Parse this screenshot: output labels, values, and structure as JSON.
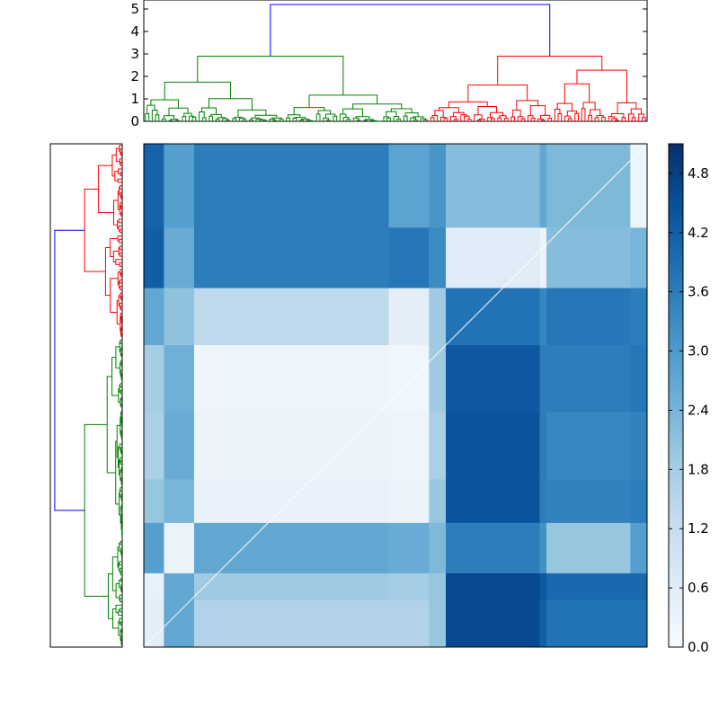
{
  "chart_data": [
    {
      "type": "dendrogram",
      "orientation": "top",
      "ylim": [
        0,
        5.4
      ],
      "yticks": [
        "0",
        "1",
        "2",
        "3",
        "4",
        "5"
      ],
      "leaf_count": 150,
      "merge_heights": {
        "root": 5.2,
        "green_cluster_top": 2.9,
        "red_cluster_top": 2.9
      },
      "link_colors": {
        "root": "#0000ff",
        "cluster_a": "#008000",
        "cluster_b": "#ff0000"
      }
    },
    {
      "type": "dendrogram",
      "orientation": "left",
      "leaf_count": 150,
      "link_colors": {
        "root": "#0000ff",
        "cluster_a": "#008000",
        "cluster_b": "#ff0000"
      }
    },
    {
      "type": "heatmap",
      "colormap": "Blues",
      "value_range": [
        0.0,
        5.1
      ],
      "blocks_x": [
        0,
        6,
        15,
        73,
        85,
        90,
        118,
        120,
        145,
        150
      ],
      "blocks_y": [
        0,
        25,
        43,
        60,
        80,
        100,
        113,
        128,
        136,
        150
      ],
      "block_values": [
        [
          4.1,
          2.9,
          3.6,
          2.8,
          3.1,
          2.2,
          2.7,
          2.3,
          0.25
        ],
        [
          4.2,
          2.6,
          3.6,
          3.7,
          3.3,
          0.6,
          0.3,
          2.2,
          2.4
        ],
        [
          2.7,
          2.1,
          1.4,
          0.5,
          1.9,
          3.8,
          3.4,
          3.7,
          3.6
        ],
        [
          1.8,
          2.5,
          0.25,
          0.2,
          1.9,
          4.3,
          3.6,
          3.6,
          3.7
        ],
        [
          1.7,
          2.6,
          0.3,
          0.25,
          1.7,
          4.4,
          3.6,
          3.4,
          3.5
        ],
        [
          2.0,
          2.4,
          0.35,
          0.3,
          2.0,
          4.4,
          3.6,
          3.5,
          3.6
        ],
        [
          2.9,
          0.3,
          2.7,
          2.6,
          2.3,
          3.6,
          3.2,
          2.0,
          2.9
        ],
        [
          0.4,
          2.7,
          1.9,
          1.8,
          2.0,
          4.6,
          4.3,
          4.0,
          4.0
        ],
        [
          0.5,
          2.7,
          1.6,
          1.6,
          2.0,
          4.6,
          4.2,
          3.8,
          3.8
        ]
      ]
    },
    {
      "type": "colorbar",
      "ticks": [
        "0.0",
        "0.6",
        "1.2",
        "1.8",
        "2.4",
        "3.0",
        "3.6",
        "4.2",
        "4.8"
      ],
      "range": [
        0.0,
        5.1
      ]
    }
  ]
}
